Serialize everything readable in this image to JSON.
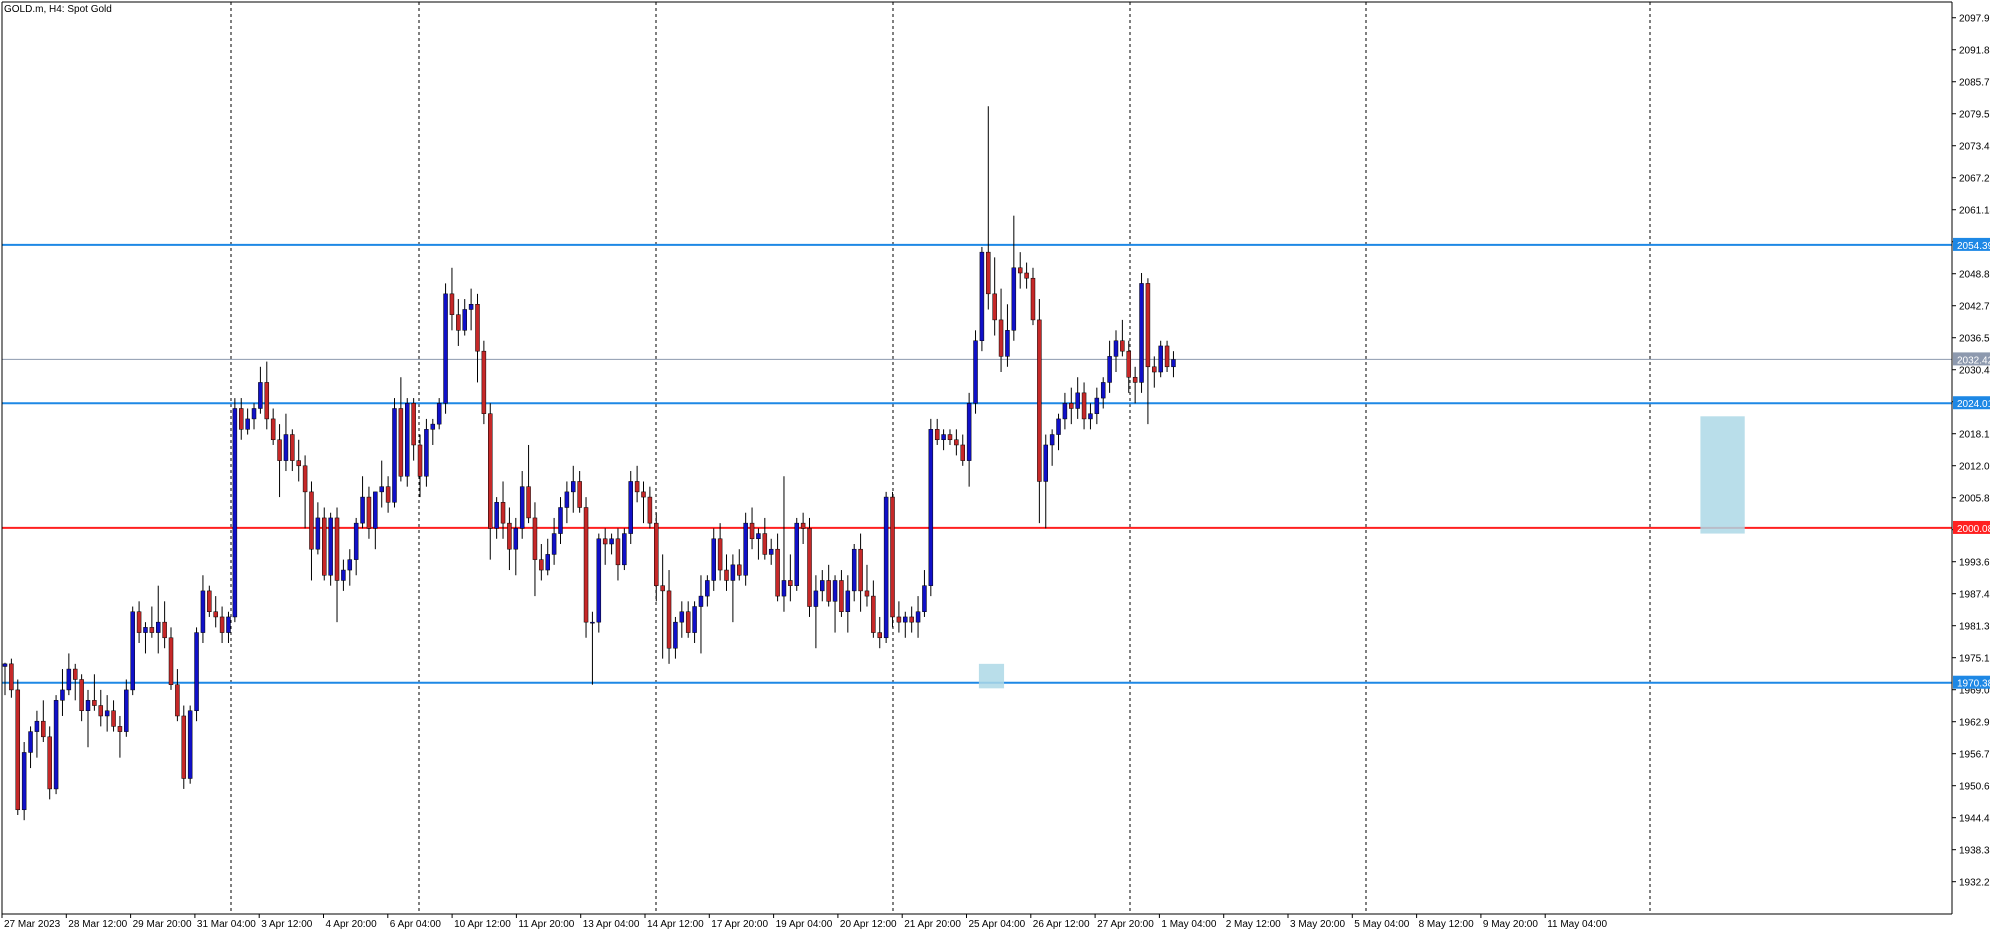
{
  "chart_data": {
    "type": "candlestick",
    "title": "GOLD.m, H4:  Spot Gold",
    "symbol": "GOLD.m",
    "timeframe": "H4",
    "instrument": "Spot Gold",
    "ylim": [
      1926.0,
      2101.0
    ],
    "y_ticks": [
      "2097.98",
      "2091.84",
      "2085.70",
      "2079.56",
      "2073.42",
      "2067.28",
      "2061.14",
      "2055.00",
      "2048.86",
      "2042.72",
      "2036.58",
      "2030.44",
      "2024.30",
      "2018.16",
      "2012.02",
      "2005.88",
      "1999.74",
      "1993.60",
      "1987.46",
      "1981.32",
      "1975.18",
      "1969.04",
      "1962.90",
      "1956.76",
      "1950.62",
      "1944.48",
      "1938.34",
      "1932.20"
    ],
    "x_ticks": [
      "27 Mar 2023",
      "28 Mar 12:00",
      "29 Mar 20:00",
      "31 Mar 04:00",
      "3 Apr 12:00",
      "4 Apr 20:00",
      "6 Apr 04:00",
      "10 Apr 12:00",
      "11 Apr 20:00",
      "13 Apr 04:00",
      "14 Apr 12:00",
      "17 Apr 20:00",
      "19 Apr 04:00",
      "20 Apr 12:00",
      "21 Apr 20:00",
      "25 Apr 04:00",
      "26 Apr 12:00",
      "27 Apr 20:00",
      "1 May 04:00",
      "2 May 12:00",
      "3 May 20:00",
      "5 May 04:00",
      "8 May 12:00",
      "9 May 20:00",
      "11 May 04:00"
    ],
    "horizontal_levels": [
      {
        "value": 2054.39,
        "label": "2054.39",
        "color": "#1e88e5"
      },
      {
        "value": 2024.01,
        "label": "2024.01",
        "color": "#1e88e5"
      },
      {
        "value": 2000.08,
        "label": "2000.08",
        "color": "#ff2020"
      },
      {
        "value": 1970.38,
        "label": "1970.38",
        "color": "#1e88e5"
      }
    ],
    "current_price": {
      "value": 2032.42,
      "label": "2032.42",
      "color": "#8d99ae"
    },
    "highlight_zones": [
      {
        "bar_start": 153,
        "bar_end": 156,
        "high": 1974.0,
        "low": 1969.3
      },
      {
        "bar_start": 266,
        "bar_end": 272,
        "high": 2021.5,
        "low": 1999.0
      }
    ],
    "colors": {
      "up": "#1010c8",
      "down": "#c62828",
      "wick": "#000000",
      "grid": "#000000",
      "background": "#ffffff"
    },
    "candles": [
      [
        1973.5,
        1974.2,
        1968.0,
        1974.0
      ],
      [
        1974.0,
        1975.0,
        1967.5,
        1969.0
      ],
      [
        1969.0,
        1971.0,
        1945.0,
        1946.0
      ],
      [
        1946.0,
        1959.0,
        1944.0,
        1957.0
      ],
      [
        1957.0,
        1962.0,
        1954.0,
        1961.0
      ],
      [
        1961.0,
        1965.0,
        1956.0,
        1963.0
      ],
      [
        1963.0,
        1967.0,
        1959.0,
        1960.0
      ],
      [
        1960.0,
        1962.0,
        1948.0,
        1950.0
      ],
      [
        1950.0,
        1968.0,
        1949.0,
        1967.0
      ],
      [
        1967.0,
        1973.0,
        1964.0,
        1969.0
      ],
      [
        1969.0,
        1976.0,
        1968.0,
        1973.0
      ],
      [
        1973.0,
        1974.0,
        1967.0,
        1971.0
      ],
      [
        1971.0,
        1972.0,
        1963.0,
        1965.0
      ],
      [
        1965.0,
        1969.0,
        1958.0,
        1967.0
      ],
      [
        1967.0,
        1972.0,
        1965.0,
        1966.0
      ],
      [
        1966.0,
        1969.0,
        1962.0,
        1964.0
      ],
      [
        1964.0,
        1968.0,
        1961.0,
        1965.0
      ],
      [
        1965.0,
        1967.0,
        1961.0,
        1962.0
      ],
      [
        1962.0,
        1964.0,
        1956.0,
        1961.0
      ],
      [
        1961.0,
        1971.0,
        1960.0,
        1969.0
      ],
      [
        1969.0,
        1985.0,
        1968.0,
        1984.0
      ],
      [
        1984.0,
        1986.0,
        1978.0,
        1980.0
      ],
      [
        1980.0,
        1982.0,
        1976.0,
        1981.0
      ],
      [
        1981.0,
        1985.0,
        1979.0,
        1980.0
      ],
      [
        1980.0,
        1989.0,
        1976.0,
        1982.0
      ],
      [
        1982.0,
        1986.0,
        1977.0,
        1979.0
      ],
      [
        1979.0,
        1981.0,
        1969.0,
        1970.0
      ],
      [
        1970.0,
        1973.0,
        1963.0,
        1964.0
      ],
      [
        1964.0,
        1966.0,
        1950.0,
        1952.0
      ],
      [
        1952.0,
        1966.0,
        1951.0,
        1965.0
      ],
      [
        1965.0,
        1981.0,
        1963.0,
        1980.0
      ],
      [
        1980.0,
        1991.0,
        1978.0,
        1988.0
      ],
      [
        1988.0,
        1989.0,
        1983.0,
        1984.0
      ],
      [
        1984.0,
        1987.0,
        1981.0,
        1983.0
      ],
      [
        1983.0,
        1985.0,
        1978.0,
        1980.0
      ],
      [
        1980.0,
        1984.0,
        1978.0,
        1983.0
      ],
      [
        1983.0,
        2025.0,
        1982.0,
        2023.0
      ],
      [
        2023.0,
        2025.0,
        2017.0,
        2019.0
      ],
      [
        2019.0,
        2023.0,
        2018.0,
        2021.0
      ],
      [
        2021.0,
        2024.0,
        2019.0,
        2023.0
      ],
      [
        2023.0,
        2031.0,
        2022.0,
        2028.0
      ],
      [
        2028.0,
        2032.0,
        2019.0,
        2021.0
      ],
      [
        2021.0,
        2023.0,
        2016.0,
        2017.0
      ],
      [
        2017.0,
        2020.0,
        2006.0,
        2013.0
      ],
      [
        2013.0,
        2022.0,
        2011.0,
        2018.0
      ],
      [
        2018.0,
        2019.0,
        2011.0,
        2013.0
      ],
      [
        2013.0,
        2017.0,
        2009.0,
        2012.0
      ],
      [
        2012.0,
        2014.0,
        2000.0,
        2007.0
      ],
      [
        2007.0,
        2009.0,
        1990.0,
        1996.0
      ],
      [
        1996.0,
        2005.0,
        1995.0,
        2002.0
      ],
      [
        2002.0,
        2004.0,
        1990.0,
        1991.0
      ],
      [
        1991.0,
        2003.0,
        1989.0,
        2002.0
      ],
      [
        2002.0,
        2004.0,
        1982.0,
        1990.0
      ],
      [
        1990.0,
        1994.0,
        1988.0,
        1992.0
      ],
      [
        1992.0,
        1996.0,
        1989.0,
        1994.0
      ],
      [
        1994.0,
        2002.0,
        1991.0,
        2001.0
      ],
      [
        2001.0,
        2010.0,
        2000.0,
        2006.0
      ],
      [
        2006.0,
        2008.0,
        1998.0,
        2000.0
      ],
      [
        2000.0,
        2007.0,
        1996.0,
        2007.0
      ],
      [
        2007.0,
        2013.0,
        2004.0,
        2008.0
      ],
      [
        2008.0,
        2010.0,
        2003.0,
        2005.0
      ],
      [
        2005.0,
        2025.0,
        2004.0,
        2023.0
      ],
      [
        2023.0,
        2029.0,
        2009.0,
        2010.0
      ],
      [
        2010.0,
        2025.0,
        2008.0,
        2024.0
      ],
      [
        2024.0,
        2025.0,
        2013.0,
        2016.0
      ],
      [
        2016.0,
        2018.0,
        2006.0,
        2010.0
      ],
      [
        2010.0,
        2021.0,
        2008.0,
        2019.0
      ],
      [
        2019.0,
        2021.0,
        2016.0,
        2020.0
      ],
      [
        2020.0,
        2025.0,
        2019.0,
        2024.0
      ],
      [
        2024.0,
        2047.0,
        2022.0,
        2045.0
      ],
      [
        2045.0,
        2050.0,
        2038.0,
        2041.0
      ],
      [
        2041.0,
        2044.0,
        2035.0,
        2038.0
      ],
      [
        2038.0,
        2044.0,
        2037.0,
        2042.0
      ],
      [
        2042.0,
        2046.0,
        2038.0,
        2043.0
      ],
      [
        2043.0,
        2045.0,
        2028.0,
        2034.0
      ],
      [
        2034.0,
        2036.0,
        2020.0,
        2022.0
      ],
      [
        2022.0,
        2024.0,
        1994.0,
        2000.0
      ],
      [
        2000.0,
        2006.0,
        1998.0,
        2005.0
      ],
      [
        2005.0,
        2009.0,
        1998.0,
        2001.0
      ],
      [
        2001.0,
        2004.0,
        1992.0,
        1996.0
      ],
      [
        1996.0,
        2002.0,
        1991.0,
        2000.0
      ],
      [
        2000.0,
        2011.0,
        1998.0,
        2008.0
      ],
      [
        2008.0,
        2016.0,
        2001.0,
        2002.0
      ],
      [
        2002.0,
        2005.0,
        1987.0,
        1994.0
      ],
      [
        1994.0,
        1997.0,
        1990.0,
        1992.0
      ],
      [
        1992.0,
        1998.0,
        1991.0,
        1995.0
      ],
      [
        1995.0,
        2002.0,
        1993.0,
        1999.0
      ],
      [
        1999.0,
        2006.0,
        1997.0,
        2004.0
      ],
      [
        2004.0,
        2009.0,
        2001.0,
        2007.0
      ],
      [
        2007.0,
        2012.0,
        2003.0,
        2009.0
      ],
      [
        2009.0,
        2011.0,
        2003.0,
        2004.0
      ],
      [
        2004.0,
        2006.0,
        1979.0,
        1982.0
      ],
      [
        1982.0,
        1984.0,
        1970.0,
        1982.0
      ],
      [
        1982.0,
        1999.0,
        1980.0,
        1998.0
      ],
      [
        1998.0,
        2000.0,
        1993.0,
        1997.0
      ],
      [
        1997.0,
        1999.0,
        1995.0,
        1998.0
      ],
      [
        1998.0,
        2000.0,
        1990.0,
        1993.0
      ],
      [
        1993.0,
        2000.0,
        1992.0,
        1999.0
      ],
      [
        1999.0,
        2011.0,
        1997.0,
        2009.0
      ],
      [
        2009.0,
        2012.0,
        2005.0,
        2007.0
      ],
      [
        2007.0,
        2009.0,
        2001.0,
        2006.0
      ],
      [
        2006.0,
        2008.0,
        2000.0,
        2001.0
      ],
      [
        2001.0,
        2003.0,
        1986.0,
        1989.0
      ],
      [
        1989.0,
        1995.0,
        1975.0,
        1988.0
      ],
      [
        1988.0,
        1992.0,
        1974.0,
        1977.0
      ],
      [
        1977.0,
        1983.0,
        1975.0,
        1982.0
      ],
      [
        1982.0,
        1986.0,
        1979.0,
        1984.0
      ],
      [
        1984.0,
        1986.0,
        1979.0,
        1980.0
      ],
      [
        1980.0,
        1986.0,
        1978.0,
        1985.0
      ],
      [
        1985.0,
        1991.0,
        1976.0,
        1987.0
      ],
      [
        1987.0,
        1991.0,
        1985.0,
        1990.0
      ],
      [
        1990.0,
        2000.0,
        1988.0,
        1998.0
      ],
      [
        1998.0,
        2001.0,
        1990.0,
        1992.0
      ],
      [
        1992.0,
        1995.0,
        1988.0,
        1990.0
      ],
      [
        1990.0,
        1995.0,
        1982.0,
        1993.0
      ],
      [
        1993.0,
        1996.0,
        1990.0,
        1991.0
      ],
      [
        1991.0,
        2003.0,
        1989.0,
        2001.0
      ],
      [
        2001.0,
        2004.0,
        1996.0,
        1998.0
      ],
      [
        1998.0,
        2000.0,
        1994.0,
        1999.0
      ],
      [
        1999.0,
        2002.0,
        1994.0,
        1995.0
      ],
      [
        1995.0,
        1998.0,
        1993.0,
        1996.0
      ],
      [
        1996.0,
        1999.0,
        1986.0,
        1987.0
      ],
      [
        1987.0,
        2010.0,
        1984.0,
        1990.0
      ],
      [
        1990.0,
        1995.0,
        1986.0,
        1989.0
      ],
      [
        1989.0,
        2002.0,
        1988.0,
        2001.0
      ],
      [
        2001.0,
        2003.0,
        1997.0,
        2000.0
      ],
      [
        2000.0,
        2002.0,
        1983.0,
        1985.0
      ],
      [
        1985.0,
        1991.0,
        1977.0,
        1988.0
      ],
      [
        1988.0,
        1992.0,
        1986.0,
        1990.0
      ],
      [
        1990.0,
        1993.0,
        1985.0,
        1986.0
      ],
      [
        1986.0,
        1991.0,
        1980.0,
        1990.0
      ],
      [
        1990.0,
        1992.0,
        1983.0,
        1984.0
      ],
      [
        1984.0,
        1991.0,
        1980.0,
        1988.0
      ],
      [
        1988.0,
        1997.0,
        1986.0,
        1996.0
      ],
      [
        1996.0,
        1999.0,
        1984.0,
        1988.0
      ],
      [
        1988.0,
        1993.0,
        1985.0,
        1987.0
      ],
      [
        1987.0,
        1990.0,
        1979.0,
        1980.0
      ],
      [
        1980.0,
        1983.0,
        1977.0,
        1979.0
      ],
      [
        1979.0,
        2007.0,
        1978.0,
        2006.0
      ],
      [
        2006.0,
        2007.0,
        1981.0,
        1983.0
      ],
      [
        1983.0,
        1986.0,
        1980.0,
        1982.0
      ],
      [
        1982.0,
        1984.0,
        1979.0,
        1983.0
      ],
      [
        1983.0,
        1985.0,
        1980.0,
        1982.0
      ],
      [
        1982.0,
        1987.0,
        1979.0,
        1984.0
      ],
      [
        1984.0,
        1992.0,
        1983.0,
        1989.0
      ],
      [
        1989.0,
        2021.0,
        1987.0,
        2019.0
      ],
      [
        2019.0,
        2021.0,
        2016.0,
        2017.0
      ],
      [
        2017.0,
        2019.0,
        2015.0,
        2018.0
      ],
      [
        2018.0,
        2019.0,
        2016.0,
        2017.0
      ],
      [
        2017.0,
        2019.0,
        2014.0,
        2016.0
      ],
      [
        2016.0,
        2018.0,
        2012.0,
        2013.0
      ],
      [
        2013.0,
        2026.0,
        2008.0,
        2024.0
      ],
      [
        2024.0,
        2038.0,
        2022.0,
        2036.0
      ],
      [
        2036.0,
        2054.0,
        2034.0,
        2053.0
      ],
      [
        2053.0,
        2081.0,
        2042.0,
        2045.0
      ],
      [
        2045.0,
        2052.0,
        2037.0,
        2040.0
      ],
      [
        2040.0,
        2046.0,
        2030.0,
        2033.0
      ],
      [
        2033.0,
        2043.0,
        2031.0,
        2038.0
      ],
      [
        2038.0,
        2060.0,
        2036.0,
        2050.0
      ],
      [
        2050.0,
        2053.0,
        2046.0,
        2049.0
      ],
      [
        2049.0,
        2051.0,
        2046.0,
        2048.0
      ],
      [
        2048.0,
        2050.0,
        2039.0,
        2040.0
      ],
      [
        2040.0,
        2044.0,
        2001.0,
        2009.0
      ],
      [
        2009.0,
        2018.0,
        2000.0,
        2016.0
      ],
      [
        2016.0,
        2019.0,
        2012.0,
        2018.0
      ],
      [
        2018.0,
        2022.0,
        2015.0,
        2021.0
      ],
      [
        2021.0,
        2026.0,
        2019.0,
        2024.0
      ],
      [
        2024.0,
        2027.0,
        2020.0,
        2023.0
      ],
      [
        2023.0,
        2029.0,
        2021.0,
        2026.0
      ],
      [
        2026.0,
        2028.0,
        2019.0,
        2021.0
      ],
      [
        2021.0,
        2024.0,
        2019.0,
        2022.0
      ],
      [
        2022.0,
        2027.0,
        2020.0,
        2025.0
      ],
      [
        2025.0,
        2029.0,
        2023.0,
        2028.0
      ],
      [
        2028.0,
        2036.0,
        2026.0,
        2033.0
      ],
      [
        2033.0,
        2038.0,
        2030.0,
        2036.0
      ],
      [
        2036.0,
        2040.0,
        2033.0,
        2034.0
      ],
      [
        2034.0,
        2036.0,
        2026.0,
        2029.0
      ],
      [
        2029.0,
        2031.0,
        2024.0,
        2028.0
      ],
      [
        2028.0,
        2049.0,
        2026.0,
        2047.0
      ],
      [
        2047.0,
        2048.0,
        2020.0,
        2031.0
      ],
      [
        2031.0,
        2033.0,
        2027.0,
        2030.0
      ],
      [
        2030.0,
        2036.0,
        2029.0,
        2035.0
      ],
      [
        2035.0,
        2036.0,
        2030.0,
        2031.0
      ],
      [
        2031.0,
        2034.0,
        2029.0,
        2032.4
      ]
    ]
  }
}
